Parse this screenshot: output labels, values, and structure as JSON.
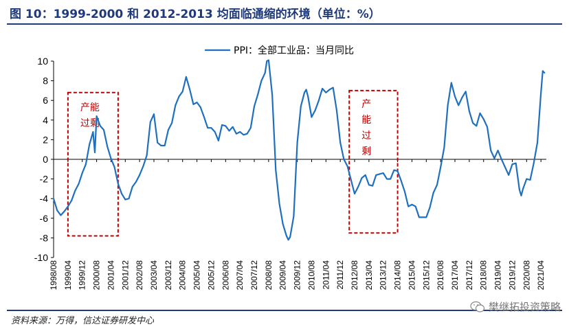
{
  "figure": {
    "title": "图 10：1999-2000 和 2012-2013 均面临通缩的环境（单位：%）",
    "source": "资料来源：万得，信达证券研发中心",
    "watermark": "樊继拓投资策略",
    "watermark_icon": "wechat-icon",
    "accent_color": "#1f3a7a"
  },
  "chart_data": {
    "type": "line",
    "title": "",
    "xlabel": "",
    "ylabel": "",
    "ylim": [
      -10,
      10
    ],
    "yticks": [
      "10",
      "8",
      "6",
      "4",
      "2",
      "0",
      "-2",
      "-4",
      "-6",
      "-8",
      "-10"
    ],
    "xticks": [
      "1998/08",
      "1999/04",
      "1999/12",
      "2000/08",
      "2001/04",
      "2001/12",
      "2002/08",
      "2003/04",
      "2003/12",
      "2004/08",
      "2005/04",
      "2005/12",
      "2006/08",
      "2007/04",
      "2007/12",
      "2008/08",
      "2009/04",
      "2009/12",
      "2010/08",
      "2011/04",
      "2011/12",
      "2012/08",
      "2013/04",
      "2013/12",
      "2014/08",
      "2015/04",
      "2015/12",
      "2016/08",
      "2017/04",
      "2017/12",
      "2018/08",
      "2019/04",
      "2019/12",
      "2020/08",
      "2021/04"
    ],
    "grid": false,
    "legend_position": "top",
    "series": [
      {
        "name": "PPI：全部工业品：当月同比",
        "color": "#1f6fbf",
        "points": [
          [
            "1998/08",
            -4.0
          ],
          [
            "1998/10",
            -5.2
          ],
          [
            "1998/12",
            -5.7
          ],
          [
            "1999/02",
            -5.3
          ],
          [
            "1999/04",
            -4.8
          ],
          [
            "1999/06",
            -4.2
          ],
          [
            "1999/08",
            -3.2
          ],
          [
            "1999/10",
            -2.5
          ],
          [
            "1999/12",
            -1.4
          ],
          [
            "2000/02",
            -0.5
          ],
          [
            "2000/04",
            1.5
          ],
          [
            "2000/06",
            2.8
          ],
          [
            "2000/07",
            0.7
          ],
          [
            "2000/08",
            4.4
          ],
          [
            "2000/10",
            3.4
          ],
          [
            "2000/12",
            3.0
          ],
          [
            "2001/02",
            1.3
          ],
          [
            "2001/04",
            0.1
          ],
          [
            "2001/06",
            -0.8
          ],
          [
            "2001/08",
            -2.5
          ],
          [
            "2001/10",
            -3.5
          ],
          [
            "2001/12",
            -4.1
          ],
          [
            "2002/02",
            -4.0
          ],
          [
            "2002/04",
            -2.8
          ],
          [
            "2002/06",
            -2.3
          ],
          [
            "2002/08",
            -1.6
          ],
          [
            "2002/10",
            -0.7
          ],
          [
            "2002/12",
            0.4
          ],
          [
            "2003/02",
            3.8
          ],
          [
            "2003/04",
            4.6
          ],
          [
            "2003/06",
            1.7
          ],
          [
            "2003/08",
            1.4
          ],
          [
            "2003/10",
            1.4
          ],
          [
            "2003/12",
            3.0
          ],
          [
            "2004/02",
            3.7
          ],
          [
            "2004/04",
            5.5
          ],
          [
            "2004/06",
            6.4
          ],
          [
            "2004/08",
            6.9
          ],
          [
            "2004/10",
            8.4
          ],
          [
            "2004/12",
            7.1
          ],
          [
            "2005/02",
            5.6
          ],
          [
            "2005/04",
            5.8
          ],
          [
            "2005/06",
            5.3
          ],
          [
            "2005/08",
            4.3
          ],
          [
            "2005/10",
            3.2
          ],
          [
            "2005/12",
            3.2
          ],
          [
            "2006/02",
            2.8
          ],
          [
            "2006/04",
            1.9
          ],
          [
            "2006/06",
            3.5
          ],
          [
            "2006/08",
            3.4
          ],
          [
            "2006/10",
            2.9
          ],
          [
            "2006/12",
            3.3
          ],
          [
            "2007/02",
            2.6
          ],
          [
            "2007/04",
            2.8
          ],
          [
            "2007/06",
            2.5
          ],
          [
            "2007/08",
            2.6
          ],
          [
            "2007/10",
            3.2
          ],
          [
            "2007/12",
            5.4
          ],
          [
            "2008/02",
            6.6
          ],
          [
            "2008/04",
            8.0
          ],
          [
            "2008/06",
            8.8
          ],
          [
            "2008/07",
            10.0
          ],
          [
            "2008/08",
            10.1
          ],
          [
            "2008/10",
            6.6
          ],
          [
            "2008/12",
            -1.1
          ],
          [
            "2009/02",
            -4.5
          ],
          [
            "2009/04",
            -6.6
          ],
          [
            "2009/06",
            -7.8
          ],
          [
            "2009/07",
            -8.2
          ],
          [
            "2009/08",
            -7.9
          ],
          [
            "2009/10",
            -5.8
          ],
          [
            "2009/12",
            1.7
          ],
          [
            "2010/02",
            5.4
          ],
          [
            "2010/04",
            6.8
          ],
          [
            "2010/05",
            7.1
          ],
          [
            "2010/06",
            6.4
          ],
          [
            "2010/08",
            4.3
          ],
          [
            "2010/10",
            5.0
          ],
          [
            "2010/12",
            6.0
          ],
          [
            "2011/02",
            7.2
          ],
          [
            "2011/04",
            6.8
          ],
          [
            "2011/06",
            7.1
          ],
          [
            "2011/08",
            7.3
          ],
          [
            "2011/10",
            5.0
          ],
          [
            "2011/12",
            1.7
          ],
          [
            "2012/02",
            0.0
          ],
          [
            "2012/04",
            -0.7
          ],
          [
            "2012/06",
            -2.1
          ],
          [
            "2012/08",
            -3.5
          ],
          [
            "2012/10",
            -2.8
          ],
          [
            "2012/12",
            -1.9
          ],
          [
            "2013/02",
            -1.6
          ],
          [
            "2013/04",
            -2.6
          ],
          [
            "2013/06",
            -2.7
          ],
          [
            "2013/08",
            -1.6
          ],
          [
            "2013/10",
            -1.5
          ],
          [
            "2013/12",
            -1.4
          ],
          [
            "2014/02",
            -2.0
          ],
          [
            "2014/04",
            -2.0
          ],
          [
            "2014/06",
            -1.1
          ],
          [
            "2014/08",
            -1.2
          ],
          [
            "2014/10",
            -2.2
          ],
          [
            "2014/12",
            -3.3
          ],
          [
            "2015/02",
            -4.8
          ],
          [
            "2015/04",
            -4.6
          ],
          [
            "2015/06",
            -4.8
          ],
          [
            "2015/08",
            -5.9
          ],
          [
            "2015/10",
            -5.9
          ],
          [
            "2015/12",
            -5.9
          ],
          [
            "2016/02",
            -4.9
          ],
          [
            "2016/04",
            -3.4
          ],
          [
            "2016/06",
            -2.6
          ],
          [
            "2016/08",
            -0.8
          ],
          [
            "2016/10",
            1.2
          ],
          [
            "2016/12",
            5.5
          ],
          [
            "2017/02",
            7.8
          ],
          [
            "2017/04",
            6.4
          ],
          [
            "2017/06",
            5.5
          ],
          [
            "2017/08",
            6.3
          ],
          [
            "2017/10",
            6.9
          ],
          [
            "2017/12",
            4.9
          ],
          [
            "2018/02",
            3.7
          ],
          [
            "2018/04",
            3.4
          ],
          [
            "2018/06",
            4.7
          ],
          [
            "2018/08",
            4.1
          ],
          [
            "2018/10",
            3.3
          ],
          [
            "2018/12",
            0.9
          ],
          [
            "2019/02",
            0.1
          ],
          [
            "2019/04",
            0.9
          ],
          [
            "2019/06",
            0.0
          ],
          [
            "2019/08",
            -0.8
          ],
          [
            "2019/10",
            -1.6
          ],
          [
            "2019/12",
            -0.5
          ],
          [
            "2020/02",
            -0.4
          ],
          [
            "2020/04",
            -3.1
          ],
          [
            "2020/05",
            -3.7
          ],
          [
            "2020/06",
            -3.0
          ],
          [
            "2020/08",
            -2.0
          ],
          [
            "2020/10",
            -2.1
          ],
          [
            "2020/12",
            -0.4
          ],
          [
            "2021/02",
            1.7
          ],
          [
            "2021/04",
            6.8
          ],
          [
            "2021/05",
            9.0
          ],
          [
            "2021/06",
            8.8
          ]
        ]
      }
    ],
    "annotations": [
      {
        "label": "产能过剩",
        "layout": "horizontal",
        "color": "#c00000",
        "from": "1999/04",
        "to": "2001/08",
        "ymin": -7.8,
        "ymax": 6.8
      },
      {
        "label": "产能过剩",
        "layout": "vertical",
        "color": "#c00000",
        "from": "2012/05",
        "to": "2014/08",
        "ymin": -7.5,
        "ymax": 7.0
      }
    ]
  }
}
